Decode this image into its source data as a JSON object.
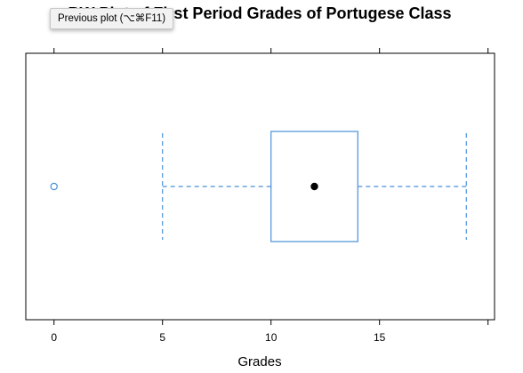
{
  "tooltip": {
    "text": "Previous plot (⌥⌘F11)"
  },
  "chart_data": {
    "type": "boxplot",
    "orientation": "horizontal",
    "title": "BW Plot of First Period Grades of Portugese Class",
    "xlabel": "Grades",
    "ylabel": "",
    "xlim": [
      -1.3,
      20.3
    ],
    "x_ticks": [
      0,
      5,
      10,
      15
    ],
    "x_tick_labels": [
      "0",
      "5",
      "10",
      "15"
    ],
    "grid": false,
    "box": {
      "whisker_low": 5,
      "q1": 10,
      "median": 12,
      "q3": 14,
      "whisker_high": 19,
      "outliers": [
        0
      ]
    },
    "colors": {
      "box": "#4a90d9",
      "median_dot": "#000000",
      "frame": "#000000"
    }
  }
}
